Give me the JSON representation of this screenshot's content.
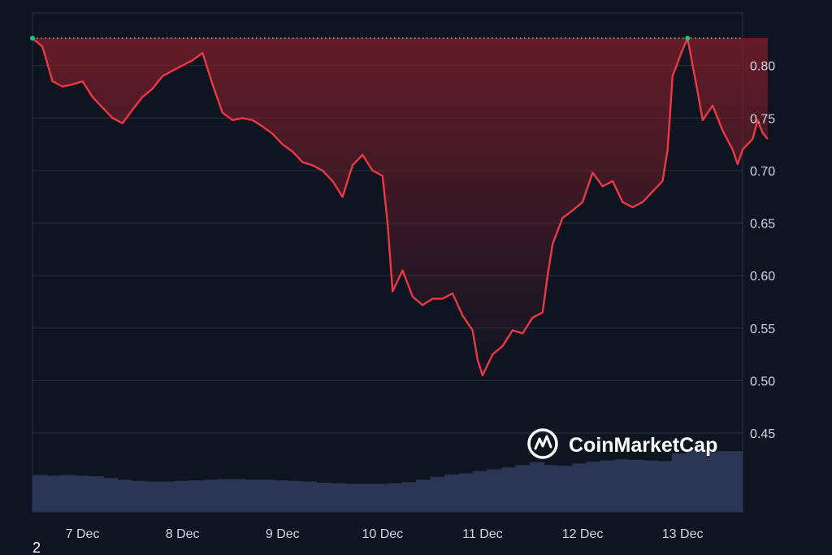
{
  "chart_data": {
    "type": "line",
    "title": "",
    "xlabel": "",
    "ylabel": "",
    "x_tick_labels": [
      "7 Dec",
      "8 Dec",
      "9 Dec",
      "10 Dec",
      "11 Dec",
      "12 Dec",
      "13 Dec"
    ],
    "y_tick_labels": [
      "0.45",
      "0.50",
      "0.55",
      "0.60",
      "0.65",
      "0.70",
      "0.75",
      "0.80"
    ],
    "ylim": [
      0.375,
      0.85
    ],
    "x_range_days": [
      6.5,
      13.6
    ],
    "reference_line": 0.826,
    "grid": true,
    "legend": "none",
    "colors": {
      "background": "#0e1521",
      "line": "#ea3943",
      "area_top": "#7a1d2a",
      "volume": "#2b3554",
      "grid": "#2a3342",
      "reference_line": "#aab2c0",
      "marker": "#16c784",
      "tick_text": "#cfd6e4"
    },
    "series": [
      {
        "values": [
          [
            6.5,
            0.826
          ],
          [
            6.6,
            0.818
          ],
          [
            6.7,
            0.785
          ],
          [
            6.8,
            0.78
          ],
          [
            6.9,
            0.782
          ],
          [
            7.0,
            0.785
          ],
          [
            7.1,
            0.77
          ],
          [
            7.2,
            0.76
          ],
          [
            7.3,
            0.75
          ],
          [
            7.4,
            0.745
          ],
          [
            7.5,
            0.758
          ],
          [
            7.6,
            0.77
          ],
          [
            7.7,
            0.778
          ],
          [
            7.8,
            0.79
          ],
          [
            7.9,
            0.795
          ],
          [
            8.0,
            0.8
          ],
          [
            8.1,
            0.805
          ],
          [
            8.2,
            0.812
          ],
          [
            8.3,
            0.782
          ],
          [
            8.4,
            0.755
          ],
          [
            8.5,
            0.748
          ],
          [
            8.6,
            0.75
          ],
          [
            8.7,
            0.748
          ],
          [
            8.8,
            0.742
          ],
          [
            8.9,
            0.735
          ],
          [
            9.0,
            0.725
          ],
          [
            9.1,
            0.718
          ],
          [
            9.2,
            0.708
          ],
          [
            9.3,
            0.705
          ],
          [
            9.4,
            0.7
          ],
          [
            9.5,
            0.69
          ],
          [
            9.6,
            0.675
          ],
          [
            9.7,
            0.705
          ],
          [
            9.8,
            0.715
          ],
          [
            9.9,
            0.7
          ],
          [
            10.0,
            0.695
          ],
          [
            10.05,
            0.65
          ],
          [
            10.1,
            0.585
          ],
          [
            10.2,
            0.605
          ],
          [
            10.3,
            0.58
          ],
          [
            10.4,
            0.572
          ],
          [
            10.5,
            0.578
          ],
          [
            10.6,
            0.578
          ],
          [
            10.7,
            0.583
          ],
          [
            10.8,
            0.562
          ],
          [
            10.9,
            0.548
          ],
          [
            10.95,
            0.52
          ],
          [
            11.0,
            0.505
          ],
          [
            11.1,
            0.525
          ],
          [
            11.2,
            0.533
          ],
          [
            11.3,
            0.548
          ],
          [
            11.4,
            0.545
          ],
          [
            11.5,
            0.56
          ],
          [
            11.6,
            0.565
          ],
          [
            11.65,
            0.6
          ],
          [
            11.7,
            0.63
          ],
          [
            11.8,
            0.655
          ],
          [
            11.9,
            0.662
          ],
          [
            12.0,
            0.67
          ],
          [
            12.1,
            0.698
          ],
          [
            12.2,
            0.685
          ],
          [
            12.3,
            0.69
          ],
          [
            12.4,
            0.67
          ],
          [
            12.5,
            0.665
          ],
          [
            12.6,
            0.67
          ],
          [
            12.7,
            0.68
          ],
          [
            12.8,
            0.69
          ],
          [
            12.85,
            0.72
          ],
          [
            12.9,
            0.79
          ],
          [
            13.0,
            0.815
          ],
          [
            13.05,
            0.826
          ],
          [
            13.1,
            0.8
          ],
          [
            13.15,
            0.775
          ],
          [
            13.2,
            0.748
          ],
          [
            13.3,
            0.762
          ],
          [
            13.4,
            0.738
          ],
          [
            13.5,
            0.72
          ],
          [
            13.55,
            0.706
          ],
          [
            13.6,
            0.72
          ],
          [
            13.7,
            0.73
          ],
          [
            13.75,
            0.748
          ],
          [
            13.8,
            0.736
          ],
          [
            13.85,
            0.73
          ]
        ]
      }
    ],
    "volume_relative": [
      0.63,
      0.62,
      0.63,
      0.62,
      0.61,
      0.58,
      0.55,
      0.53,
      0.52,
      0.52,
      0.53,
      0.54,
      0.55,
      0.56,
      0.56,
      0.55,
      0.55,
      0.54,
      0.53,
      0.52,
      0.5,
      0.49,
      0.48,
      0.48,
      0.48,
      0.49,
      0.51,
      0.55,
      0.6,
      0.64,
      0.66,
      0.7,
      0.73,
      0.76,
      0.8,
      0.85,
      0.8,
      0.79,
      0.83,
      0.86,
      0.88,
      0.9,
      0.89,
      0.88,
      0.87,
      1.0,
      1.05,
      1.05,
      1.04,
      1.04
    ]
  },
  "watermark": {
    "text": "CoinMarketCap"
  },
  "corner_label": "2"
}
